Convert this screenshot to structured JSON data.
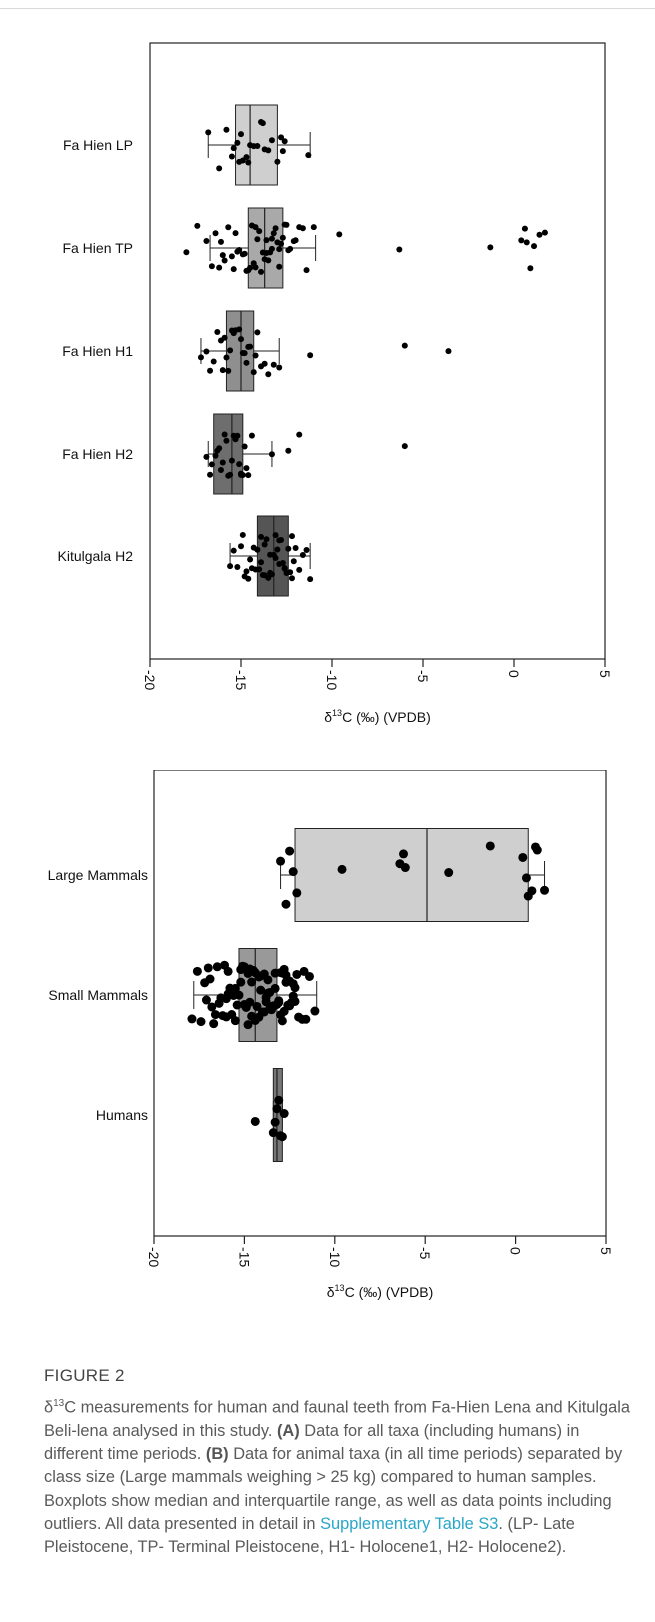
{
  "chart_data": [
    {
      "type": "boxplot",
      "orientation": "horizontal",
      "xlabel_pre": "δ",
      "xlabel_sup": "13",
      "xlabel_post": "C (‰) (VPDB)",
      "xlim": [
        -20,
        5
      ],
      "xticks": [
        "-20",
        "-15",
        "-10",
        "-5",
        "0",
        "5"
      ],
      "tick_values": [
        -20,
        -15,
        -10,
        -5,
        0,
        5
      ],
      "grid": false,
      "categories": [
        "Fa Hien LP",
        "Fa Hien TP",
        "Fa Hien H1",
        "Fa Hien H2",
        "Kitulgala H2"
      ],
      "boxes": [
        {
          "category": "Fa Hien LP",
          "whisker_low": -16.8,
          "q1": -15.3,
          "median": -14.5,
          "q3": -13.0,
          "whisker_high": -11.2,
          "fill": "#cfcfcf"
        },
        {
          "category": "Fa Hien TP",
          "whisker_low": -16.7,
          "q1": -14.6,
          "median": -13.7,
          "q3": -12.7,
          "whisker_high": -10.9,
          "fill": "#a9a9a9"
        },
        {
          "category": "Fa Hien H1",
          "whisker_low": -17.2,
          "q1": -15.8,
          "median": -15.0,
          "q3": -14.3,
          "whisker_high": -12.9,
          "fill": "#8f8f8f"
        },
        {
          "category": "Fa Hien H2",
          "whisker_low": -16.8,
          "q1": -16.5,
          "median": -15.5,
          "q3": -14.9,
          "whisker_high": -13.3,
          "fill": "#6e6e6e"
        },
        {
          "category": "Kitulgala H2",
          "whisker_low": -15.6,
          "q1": -14.1,
          "median": -13.2,
          "q3": -12.4,
          "whisker_high": -11.2,
          "fill": "#555555"
        }
      ],
      "points": [
        {
          "category": "Fa Hien LP",
          "x": [
            -15.8,
            -15.5,
            -15.4,
            -15.2,
            -15.0,
            -14.9,
            -14.7,
            -14.5,
            -14.3,
            -14.1,
            -13.9,
            -13.7,
            -13.5,
            -13.3,
            -13.0,
            -12.8,
            -12.6,
            -16.8,
            -16.2,
            -11.3,
            -14.6,
            -15.1,
            -13.8,
            -12.7
          ]
        },
        {
          "category": "Fa Hien TP",
          "x": [
            -18.0,
            -17.4,
            -16.9,
            -16.6,
            -16.4,
            -16.2,
            -16.0,
            -15.9,
            -15.7,
            -15.5,
            -15.4,
            -15.2,
            -15.1,
            -14.9,
            -14.8,
            -14.6,
            -14.5,
            -14.4,
            -14.3,
            -14.2,
            -14.1,
            -14.0,
            -13.9,
            -13.8,
            -13.7,
            -13.6,
            -13.5,
            -13.4,
            -13.3,
            -13.2,
            -13.1,
            -13.0,
            -12.9,
            -12.8,
            -12.7,
            -12.6,
            -12.5,
            -12.4,
            -12.3,
            -12.1,
            -12.0,
            -11.8,
            -11.6,
            -11.4,
            -11.0,
            -9.6,
            -6.3,
            -1.3,
            0.4,
            0.6,
            0.7,
            0.9,
            1.1,
            1.4,
            1.7,
            -14.7,
            -13.6,
            -15.3,
            -12.9,
            -14.2,
            -13.3,
            -16.1
          ]
        },
        {
          "category": "Fa Hien H1",
          "x": [
            -17.2,
            -16.9,
            -16.7,
            -16.5,
            -16.3,
            -16.1,
            -16.0,
            -15.8,
            -15.7,
            -15.5,
            -15.4,
            -15.3,
            -15.1,
            -15.0,
            -14.9,
            -14.8,
            -14.6,
            -14.5,
            -14.3,
            -14.1,
            -13.9,
            -13.7,
            -13.5,
            -13.2,
            -12.9,
            -11.2,
            -6.0,
            -3.6,
            -15.6,
            -14.7,
            -15.9,
            -14.2
          ]
        },
        {
          "category": "Fa Hien H2",
          "x": [
            -16.9,
            -16.7,
            -16.6,
            -16.4,
            -16.3,
            -16.1,
            -16.0,
            -15.9,
            -15.7,
            -15.6,
            -15.5,
            -15.4,
            -15.3,
            -15.2,
            -15.1,
            -15.0,
            -14.9,
            -14.8,
            -14.7,
            -14.6,
            -14.4,
            -13.3,
            -12.4,
            -11.8,
            -6.0,
            -16.2,
            -15.8,
            -15.0
          ]
        },
        {
          "category": "Kitulgala H2",
          "x": [
            -15.6,
            -15.4,
            -15.2,
            -15.0,
            -14.9,
            -14.7,
            -14.6,
            -14.5,
            -14.3,
            -14.2,
            -14.1,
            -14.0,
            -13.9,
            -13.8,
            -13.7,
            -13.6,
            -13.5,
            -13.4,
            -13.3,
            -13.2,
            -13.1,
            -13.0,
            -12.9,
            -12.8,
            -12.7,
            -12.6,
            -12.5,
            -12.4,
            -12.3,
            -12.2,
            -12.1,
            -12.0,
            -11.8,
            -11.6,
            -11.4,
            -11.2,
            -13.9,
            -13.1,
            -12.6,
            -14.4,
            -13.4,
            -12.2,
            -14.8,
            -13.7,
            -12.9
          ]
        }
      ]
    },
    {
      "type": "boxplot",
      "orientation": "horizontal",
      "xlabel_pre": "δ",
      "xlabel_sup": "13",
      "xlabel_post": "C (‰) (VPDB)",
      "xlim": [
        -20,
        5
      ],
      "xticks": [
        "-20",
        "-15",
        "-10",
        "-5",
        "0",
        "5"
      ],
      "tick_values": [
        -20,
        -15,
        -10,
        -5,
        0,
        5
      ],
      "grid": false,
      "categories": [
        "Large Mammals",
        "Small Mammals",
        "Humans"
      ],
      "boxes": [
        {
          "category": "Large Mammals",
          "whisker_low": -13.0,
          "q1": -12.2,
          "median": -4.9,
          "q3": 0.7,
          "whisker_high": 1.6,
          "fill": "#cfcfcf"
        },
        {
          "category": "Small Mammals",
          "whisker_low": -17.8,
          "q1": -15.3,
          "median": -14.4,
          "q3": -13.2,
          "whisker_high": -11.0,
          "fill": "#999999"
        },
        {
          "category": "Humans",
          "whisker_low": -13.4,
          "q1": -13.4,
          "median": -13.2,
          "q3": -12.9,
          "whisker_high": -12.9,
          "fill": "#777777"
        }
      ],
      "points": [
        {
          "category": "Large Mammals",
          "x": [
            -13.0,
            -12.7,
            -12.5,
            -12.3,
            -12.1,
            -9.6,
            -6.4,
            -6.2,
            -6.1,
            -3.7,
            -1.4,
            0.4,
            0.6,
            0.7,
            0.9,
            1.1,
            1.2,
            1.6
          ]
        },
        {
          "category": "Small Mammals",
          "x": [
            -17.9,
            -17.6,
            -17.4,
            -17.2,
            -17.0,
            -16.8,
            -16.6,
            -16.5,
            -16.3,
            -16.2,
            -16.0,
            -15.9,
            -15.8,
            -15.6,
            -15.5,
            -15.4,
            -15.3,
            -15.2,
            -15.1,
            -15.0,
            -14.9,
            -14.8,
            -14.7,
            -14.6,
            -14.5,
            -14.4,
            -14.3,
            -14.2,
            -14.1,
            -14.0,
            -13.9,
            -13.8,
            -13.7,
            -13.6,
            -13.5,
            -13.4,
            -13.3,
            -13.2,
            -13.1,
            -13.0,
            -12.9,
            -12.8,
            -12.7,
            -12.6,
            -12.5,
            -12.4,
            -12.3,
            -12.2,
            -12.1,
            -12.0,
            -11.8,
            -11.6,
            -11.4,
            -11.1,
            -16.7,
            -15.7,
            -14.9,
            -14.2,
            -13.6,
            -12.8,
            -16.1,
            -15.2,
            -14.6,
            -13.9,
            -13.3,
            -12.5,
            -17.1,
            -15.9,
            -14.4,
            -13.1,
            -12.2,
            -16.4,
            -15.0,
            -13.8,
            -12.9,
            -11.7,
            -16.9,
            -14.7,
            -13.4,
            -12.6,
            -15.5,
            -14.1,
            -13.0,
            -12.3,
            -16.0,
            -14.8,
            -13.7,
            -12.7
          ]
        },
        {
          "category": "Humans",
          "x": [
            -14.4,
            -13.4,
            -13.3,
            -13.2,
            -13.1,
            -13.0,
            -12.9,
            -12.8
          ]
        }
      ]
    }
  ],
  "caption": {
    "figure_label": "FIGURE 2",
    "delta": "δ",
    "sup": "13",
    "text_1": "C measurements for human and faunal teeth from Fa-Hien Lena and Kitulgala Beli-lena analysed in this study.",
    "bold_a": "(A)",
    "text_2": "Data for all taxa (including humans) in different time periods.",
    "bold_b": "(B)",
    "text_3": "Data for animal taxa (in all time periods) separated by class size (Large mammals weighing > 25 kg) compared to human samples. Boxplots show median and interquartile range, as well as data points including outliers. All data presented in detail in",
    "link": "Supplementary Table S3",
    "text_4": ". (LP- Late Pleistocene, TP- Terminal Pleistocene, H1- Holocene1, H2- Holocene2)."
  }
}
